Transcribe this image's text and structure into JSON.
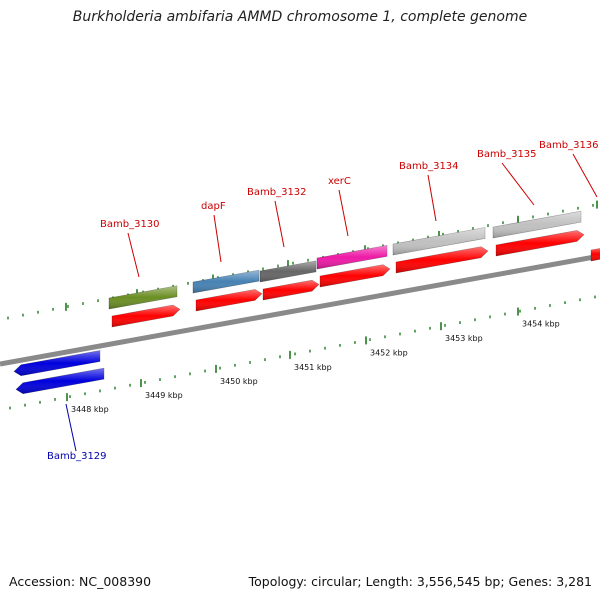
{
  "title": "Burkholderia ambifaria AMMD chromosome 1, complete genome",
  "footer": {
    "accession": "Accession: NC_008390",
    "summary": "Topology: circular; Length: 3,556,545 bp; Genes: 3,281"
  },
  "colors": {
    "backbone": "#8a8a8a",
    "tick": "#1f7a1f",
    "cds": "#ff0000",
    "reverse_gene": "#0000dd",
    "forward_label": "#cc0000",
    "reverse_label": "#0000aa"
  },
  "ticks": [
    "3448 kbp",
    "3449 kbp",
    "3450 kbp",
    "3451 kbp",
    "3452 kbp",
    "3453 kbp",
    "3454 kbp"
  ],
  "genes": [
    {
      "name": "Bamb_3129",
      "strand": "reverse",
      "feature_color": "#0000dd"
    },
    {
      "name": "Bamb_3130",
      "strand": "forward",
      "feature_color": "#6b8e23"
    },
    {
      "name": "dapF",
      "strand": "forward",
      "feature_color": "#4682b4"
    },
    {
      "name": "Bamb_3132",
      "strand": "forward",
      "feature_color": "#666666"
    },
    {
      "name": "xerC",
      "strand": "forward",
      "feature_color": "#ee1aa6"
    },
    {
      "name": "Bamb_3134",
      "strand": "forward",
      "feature_color": "#c0c0c0"
    },
    {
      "name": "Bamb_3135",
      "strand": "forward",
      "feature_color": "#c0c0c0"
    },
    {
      "name": "Bamb_3136",
      "strand": "forward",
      "feature_color": "#ff0000"
    }
  ]
}
